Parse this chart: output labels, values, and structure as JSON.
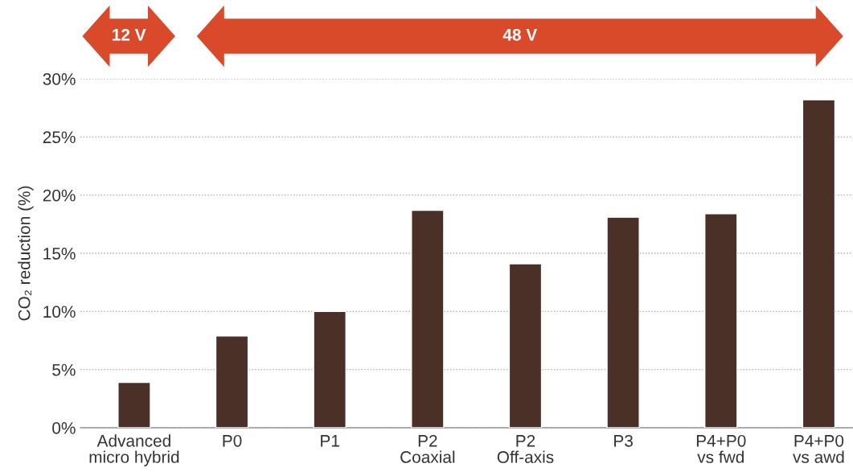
{
  "chart_data": {
    "type": "bar",
    "ylabel": "CO₂ reduction (%)",
    "categories": [
      "Advanced\nmicro hybrid",
      "P0",
      "P1",
      "P2\nCoaxial",
      "P2\nOff-axis",
      "P3",
      "P4+P0\nvs fwd",
      "P4+P0\nvs awd"
    ],
    "values": [
      3.9,
      7.9,
      10.0,
      18.7,
      14.1,
      18.1,
      18.4,
      28.2
    ],
    "color": "#4b3028",
    "ylim": [
      0,
      30
    ],
    "yticks": [
      {
        "value": 0,
        "label": "0%"
      },
      {
        "value": 5,
        "label": "5%"
      },
      {
        "value": 10,
        "label": "10%"
      },
      {
        "value": 15,
        "label": "15%"
      },
      {
        "value": 20,
        "label": "20%"
      },
      {
        "value": 25,
        "label": "25%"
      },
      {
        "value": 30,
        "label": "30%"
      }
    ],
    "grid": "y",
    "annotations": [
      "12 V",
      "48 V"
    ]
  }
}
